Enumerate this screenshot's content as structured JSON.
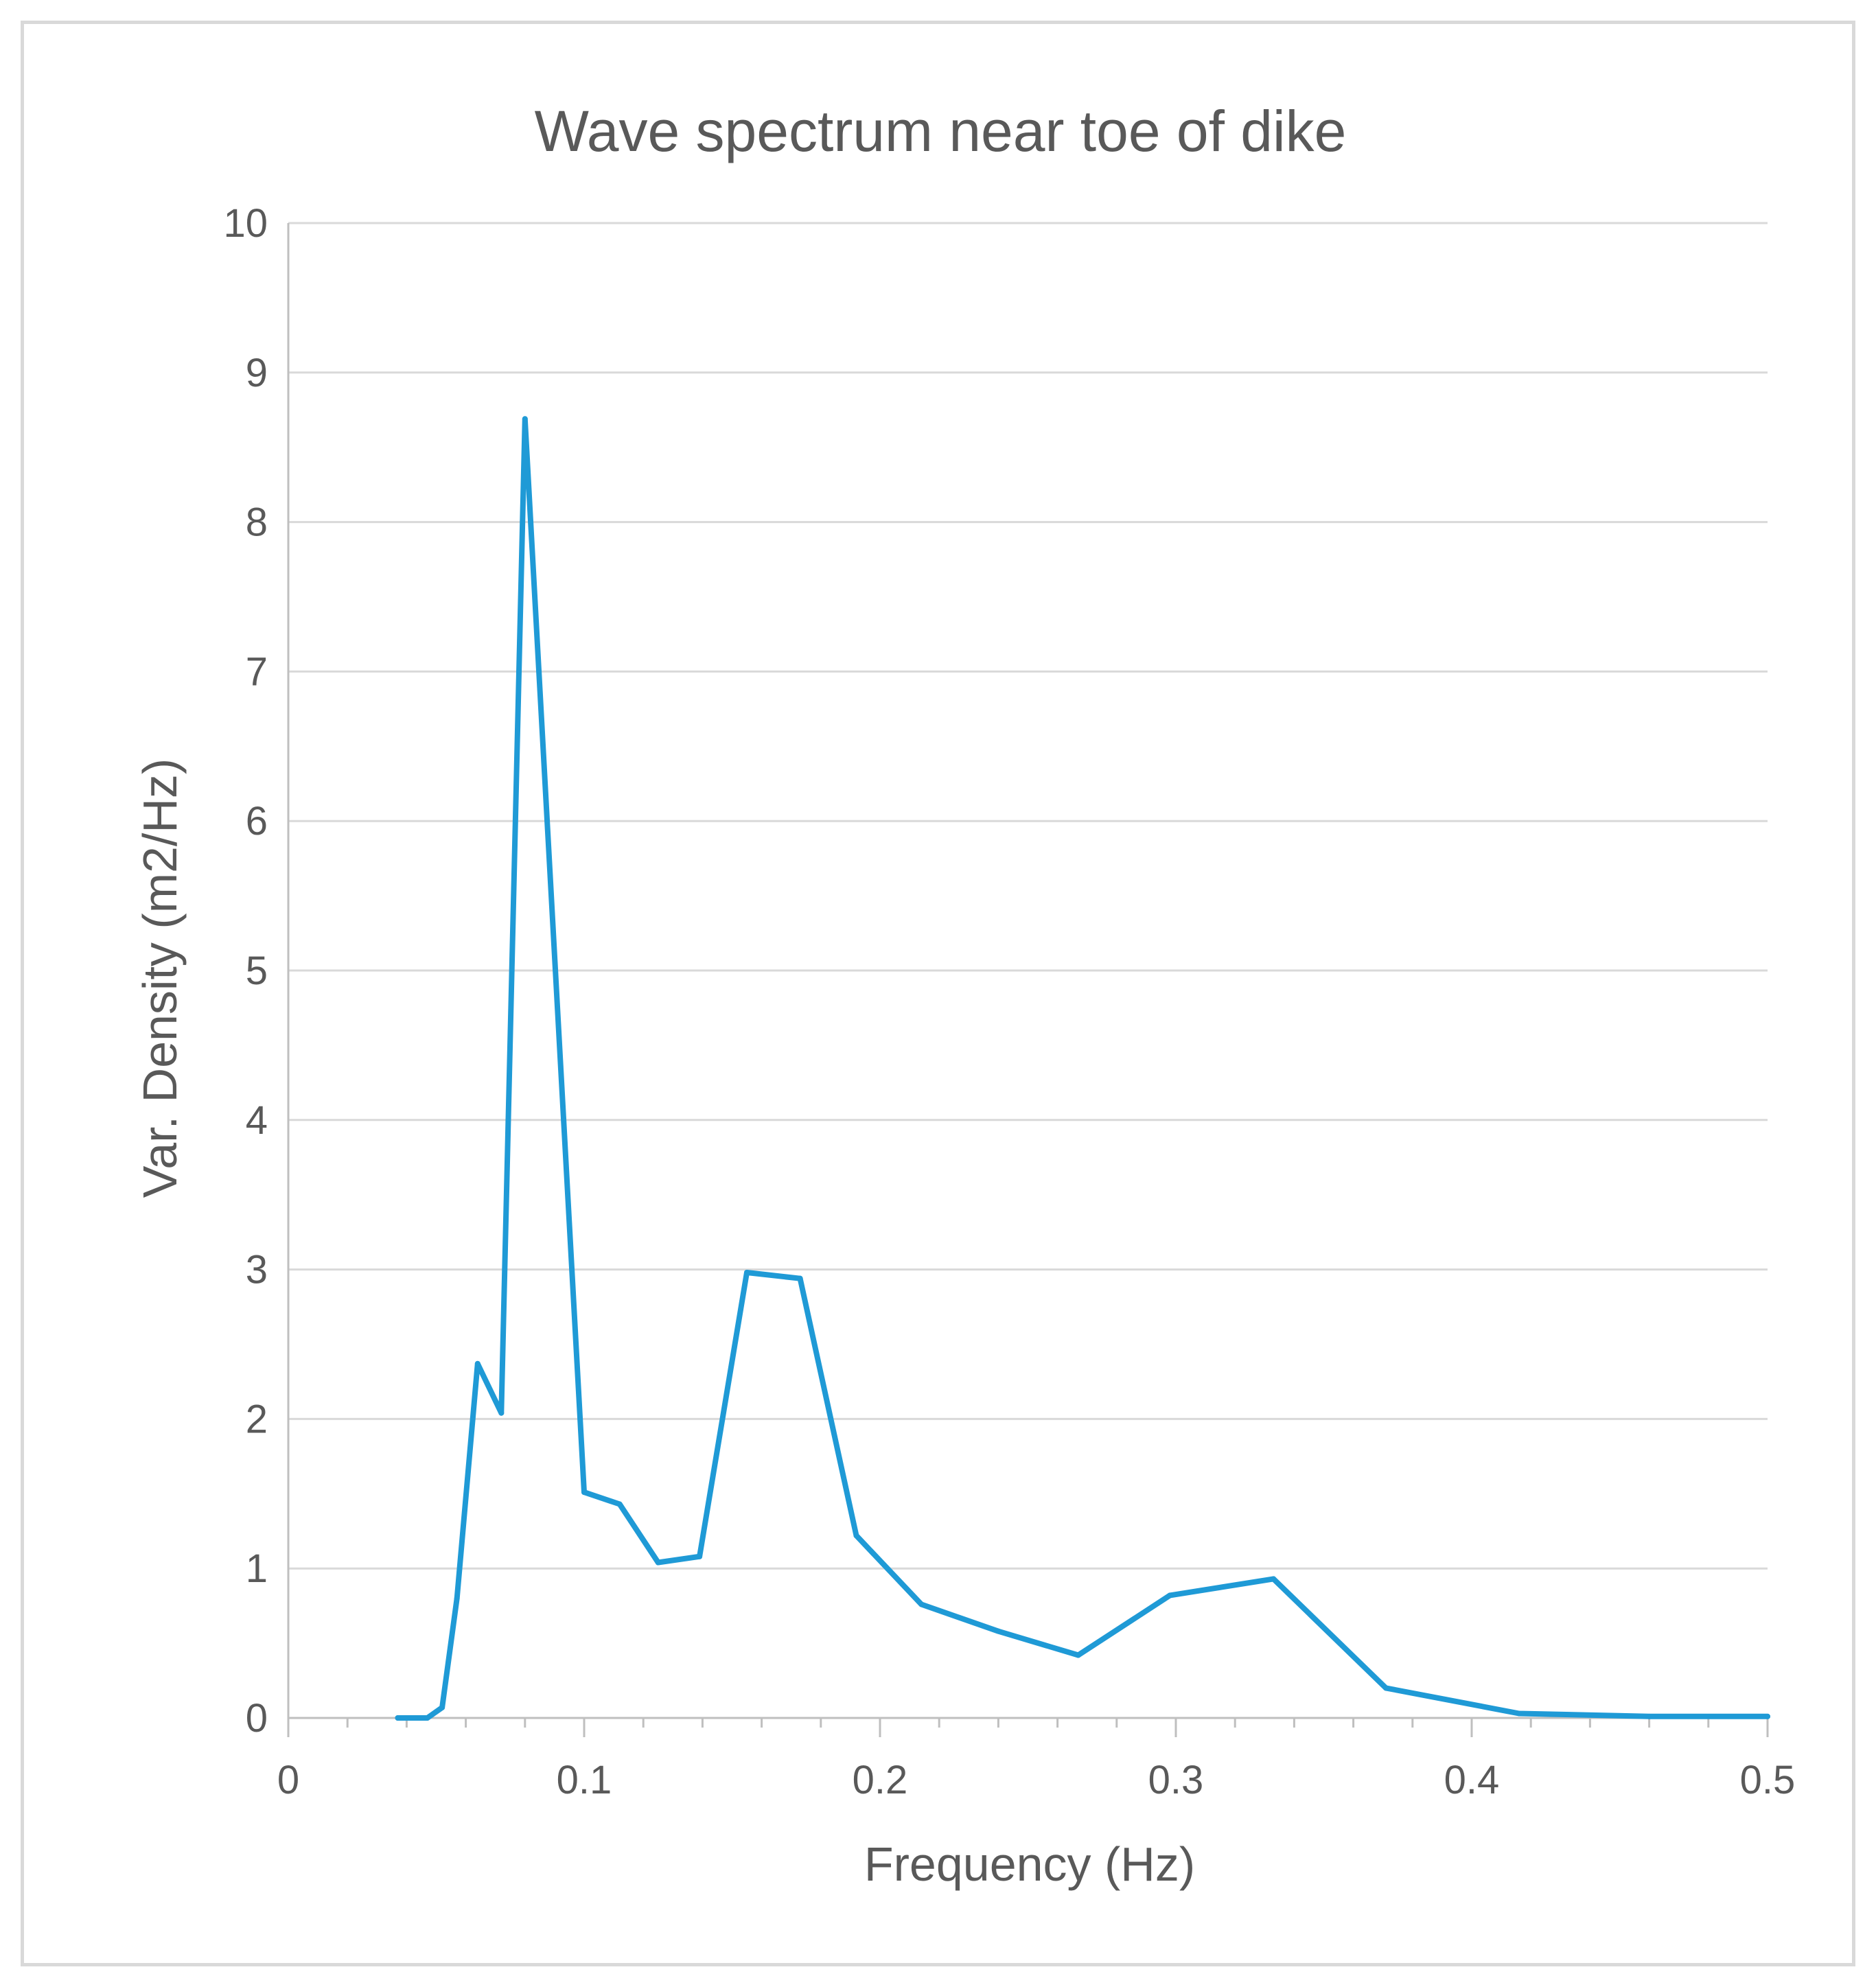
{
  "chart_data": {
    "type": "line",
    "title": "Wave spectrum near toe of dike",
    "xlabel": "Frequency (Hz)",
    "ylabel": "Var. Density (m2/Hz)",
    "xlim": [
      0,
      0.5
    ],
    "ylim": [
      0,
      10
    ],
    "x_ticks": [
      0,
      0.1,
      0.2,
      0.3,
      0.4,
      0.5
    ],
    "x_tick_labels": [
      "0",
      "0.1",
      "0.2",
      "0.3",
      "0.4",
      "0.5"
    ],
    "x_minor_step": 0.02,
    "y_ticks": [
      0,
      1,
      2,
      3,
      4,
      5,
      6,
      7,
      8,
      9,
      10
    ],
    "y_tick_labels": [
      "0",
      "1",
      "2",
      "3",
      "4",
      "5",
      "6",
      "7",
      "8",
      "9",
      "10"
    ],
    "grid": true,
    "legend": "none",
    "series": [
      {
        "name": "Var. Density",
        "color": "#1f9ad6",
        "x": [
          0.037,
          0.047,
          0.052,
          0.057,
          0.064,
          0.072,
          0.08,
          0.1,
          0.112,
          0.125,
          0.139,
          0.155,
          0.173,
          0.192,
          0.214,
          0.24,
          0.267,
          0.298,
          0.333,
          0.371,
          0.416,
          0.46,
          0.5
        ],
        "values": [
          0.0,
          0.0,
          0.07,
          0.8,
          2.37,
          2.04,
          8.69,
          1.51,
          1.43,
          1.04,
          1.08,
          2.98,
          2.94,
          1.22,
          0.76,
          0.58,
          0.42,
          0.82,
          0.93,
          0.2,
          0.03,
          0.01,
          0.01
        ]
      }
    ]
  }
}
